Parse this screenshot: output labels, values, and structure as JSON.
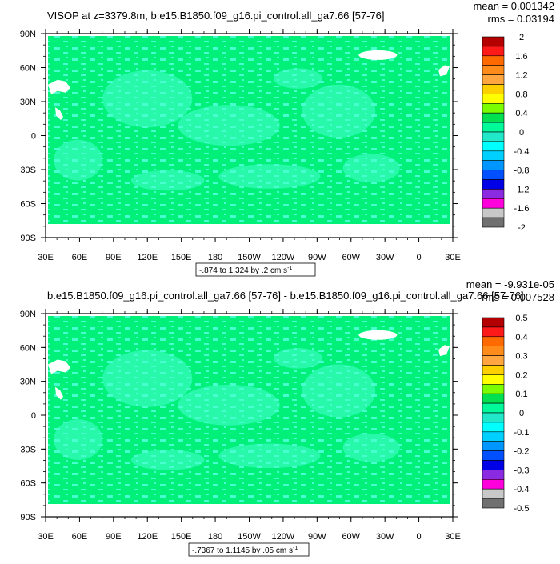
{
  "panels": [
    {
      "title": "VISOP at z=3379.8m, b.e15.B1850.f09_g16.pi_control.all_ga7.66 [57-76]",
      "mean_text": "mean = 0.001342",
      "rms_text": "rms = 0.03194",
      "range_text": "-.874 to 1.324 by .2 cm s",
      "range_exp": "-1",
      "lat_labels": [
        "90N",
        "60N",
        "30N",
        "0",
        "30S",
        "60S",
        "90S"
      ],
      "lon_labels": [
        "30E",
        "60E",
        "90E",
        "120E",
        "150E",
        "180",
        "150W",
        "120W",
        "90W",
        "60W",
        "30W",
        "0",
        "30E"
      ],
      "colorbar_labels": [
        "2",
        "1.6",
        "1.2",
        "0.8",
        "0.4",
        "0",
        "-0.4",
        "-0.8",
        "-1.2",
        "-1.6",
        "-2"
      ]
    },
    {
      "title": "b.e15.B1850.f09_g16.pi_control.all_ga7.66 [57-76] - b.e15.B1850.f09_g16.pi_control.all_ga7.66 [57-76]",
      "mean_text": "mean = -9.931e-05",
      "rms_text": "rms = 0.007528",
      "range_text": "-.7367 to 1.1145 by .05 cm s",
      "range_exp": "-1",
      "lat_labels": [
        "90N",
        "60N",
        "30N",
        "0",
        "30S",
        "60S",
        "90S"
      ],
      "lon_labels": [
        "30E",
        "60E",
        "90E",
        "120E",
        "150E",
        "180",
        "150W",
        "120W",
        "90W",
        "60W",
        "30W",
        "0",
        "30E"
      ],
      "colorbar_labels": [
        "0.5",
        "0.4",
        "0.3",
        "0.2",
        "0.1",
        "0",
        "-0.1",
        "-0.2",
        "-0.3",
        "-0.4",
        "-0.5"
      ]
    }
  ],
  "colorbar_colors": [
    "#b40000",
    "#ff1a1a",
    "#ff6a00",
    "#ff8c1a",
    "#ffa640",
    "#ffd000",
    "#ffff00",
    "#7cfc00",
    "#00e050",
    "#00fa9a",
    "#20e8c8",
    "#00ffff",
    "#00d0ff",
    "#0096ff",
    "#0050ff",
    "#0000e6",
    "#8a2be2",
    "#ff00dc",
    "#c8c8c8",
    "#707070"
  ],
  "colors": {
    "field": "#00f07a",
    "field_light": "#48ffcf",
    "land_ice": "#ffffff"
  },
  "chart_data": [
    {
      "type": "heatmap",
      "title": "VISOP at z=3379.8m, b.e15.B1850.f09_g16.pi_control.all_ga7.66 [57-76]",
      "xlim": [
        30,
        390
      ],
      "ylim": [
        -90,
        90
      ],
      "clim": [
        -2,
        2
      ]
    },
    {
      "type": "heatmap",
      "title": "b.e15.B1850.f09_g16.pi_control.all_ga7.66 [57-76] - b.e15.B1850.f09_g16.pi_control.all_ga7.66 [57-76]",
      "xlim": [
        30,
        390
      ],
      "ylim": [
        -90,
        90
      ],
      "clim": [
        -0.5,
        0.5
      ]
    }
  ]
}
